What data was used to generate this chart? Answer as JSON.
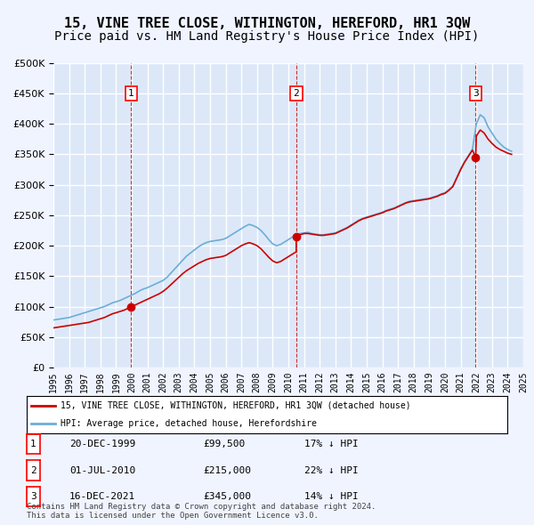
{
  "title": "15, VINE TREE CLOSE, WITHINGTON, HEREFORD, HR1 3QW",
  "subtitle": "Price paid vs. HM Land Registry's House Price Index (HPI)",
  "title_fontsize": 11,
  "subtitle_fontsize": 10,
  "ylabel_ticks": [
    "£0",
    "£50K",
    "£100K",
    "£150K",
    "£200K",
    "£250K",
    "£300K",
    "£350K",
    "£400K",
    "£450K",
    "£500K"
  ],
  "ytick_values": [
    0,
    50000,
    100000,
    150000,
    200000,
    250000,
    300000,
    350000,
    400000,
    450000,
    500000
  ],
  "ylim": [
    0,
    500000
  ],
  "background_color": "#f0f4ff",
  "plot_bg_color": "#dce8f8",
  "grid_color": "#ffffff",
  "hpi_color": "#6baed6",
  "price_color": "#cc0000",
  "sale_marker_color": "#cc0000",
  "vline_color": "#cc0000",
  "legend_label_price": "15, VINE TREE CLOSE, WITHINGTON, HEREFORD, HR1 3QW (detached house)",
  "legend_label_hpi": "HPI: Average price, detached house, Herefordshire",
  "sales": [
    {
      "date": 1999.97,
      "price": 99500,
      "label": "1",
      "table_date": "20-DEC-1999",
      "table_price": "£99,500",
      "table_hpi": "17% ↓ HPI"
    },
    {
      "date": 2010.5,
      "price": 215000,
      "label": "2",
      "table_date": "01-JUL-2010",
      "table_price": "£215,000",
      "table_hpi": "22% ↓ HPI"
    },
    {
      "date": 2021.96,
      "price": 345000,
      "label": "3",
      "table_date": "16-DEC-2021",
      "table_price": "£345,000",
      "table_hpi": "14% ↓ HPI"
    }
  ],
  "copyright_text": "Contains HM Land Registry data © Crown copyright and database right 2024.\nThis data is licensed under the Open Government Licence v3.0.",
  "hpi_x": [
    1995.0,
    1995.25,
    1995.5,
    1995.75,
    1996.0,
    1996.25,
    1996.5,
    1996.75,
    1997.0,
    1997.25,
    1997.5,
    1997.75,
    1998.0,
    1998.25,
    1998.5,
    1998.75,
    1999.0,
    1999.25,
    1999.5,
    1999.75,
    2000.0,
    2000.25,
    2000.5,
    2000.75,
    2001.0,
    2001.25,
    2001.5,
    2001.75,
    2002.0,
    2002.25,
    2002.5,
    2002.75,
    2003.0,
    2003.25,
    2003.5,
    2003.75,
    2004.0,
    2004.25,
    2004.5,
    2004.75,
    2005.0,
    2005.25,
    2005.5,
    2005.75,
    2006.0,
    2006.25,
    2006.5,
    2006.75,
    2007.0,
    2007.25,
    2007.5,
    2007.75,
    2008.0,
    2008.25,
    2008.5,
    2008.75,
    2009.0,
    2009.25,
    2009.5,
    2009.75,
    2010.0,
    2010.25,
    2010.5,
    2010.75,
    2011.0,
    2011.25,
    2011.5,
    2011.75,
    2012.0,
    2012.25,
    2012.5,
    2012.75,
    2013.0,
    2013.25,
    2013.5,
    2013.75,
    2014.0,
    2014.25,
    2014.5,
    2014.75,
    2015.0,
    2015.25,
    2015.5,
    2015.75,
    2016.0,
    2016.25,
    2016.5,
    2016.75,
    2017.0,
    2017.25,
    2017.5,
    2017.75,
    2018.0,
    2018.25,
    2018.5,
    2018.75,
    2019.0,
    2019.25,
    2019.5,
    2019.75,
    2020.0,
    2020.25,
    2020.5,
    2020.75,
    2021.0,
    2021.25,
    2021.5,
    2021.75,
    2022.0,
    2022.25,
    2022.5,
    2022.75,
    2023.0,
    2023.25,
    2023.5,
    2023.75,
    2024.0,
    2024.25
  ],
  "hpi_y": [
    78000,
    79000,
    80000,
    81000,
    82000,
    84000,
    86000,
    88000,
    90000,
    92000,
    94000,
    96000,
    98000,
    100000,
    103000,
    106000,
    108000,
    110000,
    113000,
    116000,
    119000,
    122000,
    126000,
    129000,
    131000,
    134000,
    137000,
    140000,
    143000,
    148000,
    155000,
    162000,
    169000,
    176000,
    183000,
    188000,
    193000,
    198000,
    202000,
    205000,
    207000,
    208000,
    209000,
    210000,
    212000,
    216000,
    220000,
    224000,
    228000,
    232000,
    235000,
    233000,
    230000,
    225000,
    218000,
    210000,
    203000,
    200000,
    202000,
    206000,
    210000,
    214000,
    218000,
    220000,
    221000,
    222000,
    220000,
    219000,
    218000,
    218000,
    219000,
    220000,
    221000,
    224000,
    227000,
    230000,
    234000,
    238000,
    242000,
    245000,
    247000,
    249000,
    251000,
    253000,
    255000,
    258000,
    260000,
    262000,
    265000,
    268000,
    271000,
    273000,
    274000,
    275000,
    276000,
    277000,
    278000,
    280000,
    282000,
    285000,
    287000,
    292000,
    298000,
    312000,
    326000,
    338000,
    348000,
    358000,
    400000,
    415000,
    410000,
    395000,
    385000,
    375000,
    368000,
    362000,
    358000,
    355000
  ],
  "price_x": [
    1995.0,
    1995.25,
    1995.5,
    1995.75,
    1996.0,
    1996.25,
    1996.5,
    1996.75,
    1997.0,
    1997.25,
    1997.5,
    1997.75,
    1998.0,
    1998.25,
    1998.5,
    1998.75,
    1999.0,
    1999.25,
    1999.5,
    1999.75,
    1999.97,
    2000.0,
    2000.25,
    2000.5,
    2000.75,
    2001.0,
    2001.25,
    2001.5,
    2001.75,
    2002.0,
    2002.25,
    2002.5,
    2002.75,
    2003.0,
    2003.25,
    2003.5,
    2003.75,
    2004.0,
    2004.25,
    2004.5,
    2004.75,
    2005.0,
    2005.25,
    2005.5,
    2005.75,
    2006.0,
    2006.25,
    2006.5,
    2006.75,
    2007.0,
    2007.25,
    2007.5,
    2007.75,
    2008.0,
    2008.25,
    2008.5,
    2008.75,
    2009.0,
    2009.25,
    2009.5,
    2009.75,
    2010.0,
    2010.25,
    2010.5,
    2010.5,
    2010.75,
    2011.0,
    2011.25,
    2011.5,
    2011.75,
    2012.0,
    2012.25,
    2012.5,
    2012.75,
    2013.0,
    2013.25,
    2013.5,
    2013.75,
    2014.0,
    2014.25,
    2014.5,
    2014.75,
    2015.0,
    2015.25,
    2015.5,
    2015.75,
    2016.0,
    2016.25,
    2016.5,
    2016.75,
    2017.0,
    2017.25,
    2017.5,
    2017.75,
    2018.0,
    2018.25,
    2018.5,
    2018.75,
    2019.0,
    2019.25,
    2019.5,
    2019.75,
    2020.0,
    2020.25,
    2020.5,
    2020.75,
    2021.0,
    2021.25,
    2021.5,
    2021.75,
    2021.96,
    2022.0,
    2022.25,
    2022.5,
    2022.75,
    2023.0,
    2023.25,
    2023.5,
    2023.75,
    2024.0,
    2024.25
  ],
  "price_y": [
    65000,
    66000,
    67000,
    68000,
    69000,
    70000,
    71000,
    72000,
    73000,
    74000,
    76000,
    78000,
    80000,
    82000,
    85000,
    88000,
    90000,
    92000,
    94000,
    97000,
    99500,
    100000,
    103000,
    106000,
    109000,
    112000,
    115000,
    118000,
    121000,
    125000,
    130000,
    136000,
    142000,
    148000,
    154000,
    159000,
    163000,
    167000,
    171000,
    174000,
    177000,
    179000,
    180000,
    181000,
    182000,
    184000,
    188000,
    192000,
    196000,
    200000,
    203000,
    205000,
    203000,
    200000,
    195000,
    188000,
    181000,
    175000,
    172000,
    174000,
    178000,
    182000,
    186000,
    190000,
    215000,
    218000,
    220000,
    220000,
    219000,
    218000,
    217000,
    217000,
    218000,
    219000,
    220000,
    223000,
    226000,
    229000,
    233000,
    237000,
    241000,
    244000,
    246000,
    248000,
    250000,
    252000,
    254000,
    257000,
    259000,
    261000,
    264000,
    267000,
    270000,
    272000,
    273000,
    274000,
    275000,
    276000,
    277000,
    279000,
    281000,
    284000,
    286000,
    291000,
    297000,
    311000,
    325000,
    337000,
    347000,
    357000,
    345000,
    380000,
    390000,
    385000,
    375000,
    368000,
    362000,
    358000,
    355000,
    352000,
    350000
  ]
}
